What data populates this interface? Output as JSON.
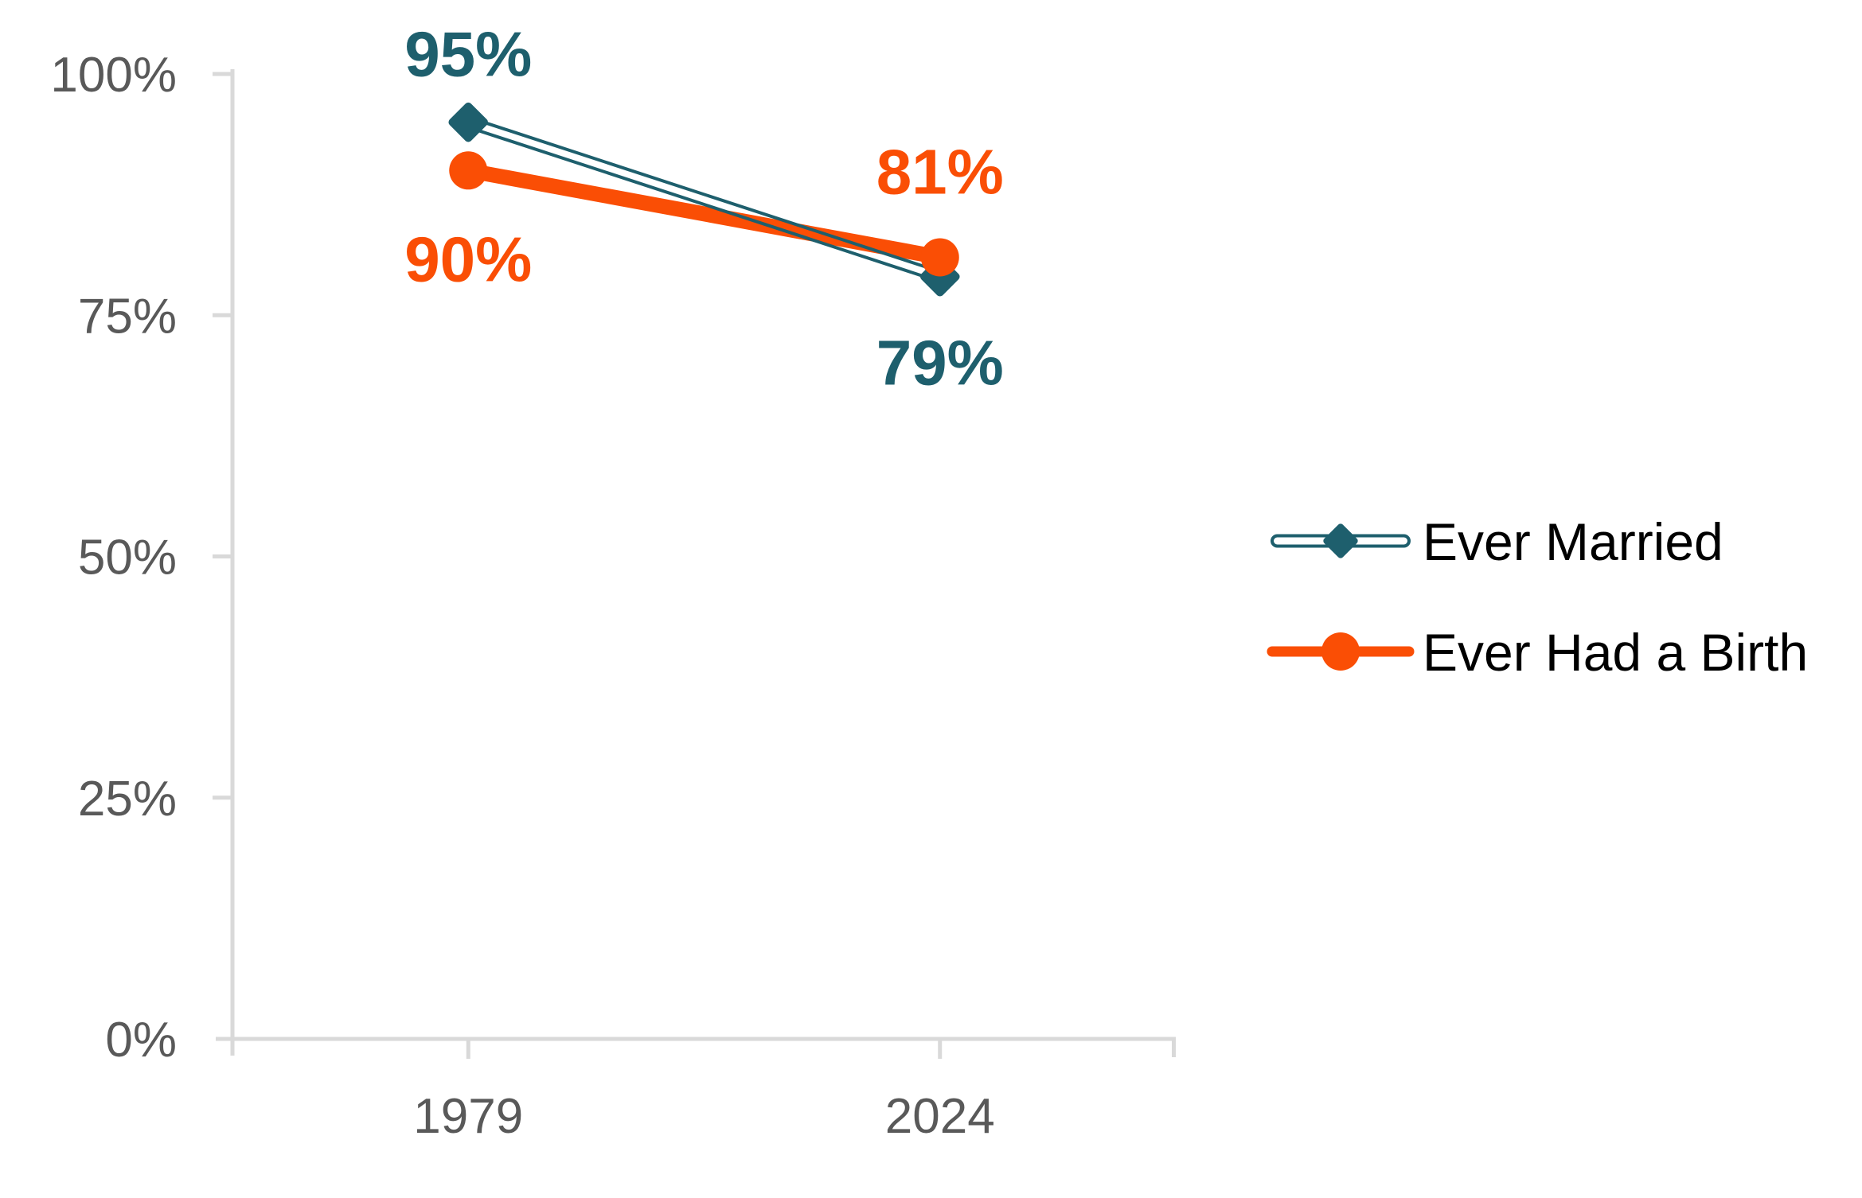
{
  "chart_data": {
    "type": "line",
    "title": "",
    "x_categories": [
      "1979",
      "2024"
    ],
    "series": [
      {
        "name": "Ever Married",
        "values": [
          95,
          79
        ],
        "point_labels": [
          "95%",
          "79%"
        ],
        "color": "#1E5F6D",
        "marker": "diamond",
        "line_style": "double-hollow"
      },
      {
        "name": "Ever Had a Birth",
        "values": [
          90,
          81
        ],
        "point_labels": [
          "90%",
          "81%"
        ],
        "color": "#FA4E05",
        "marker": "circle",
        "line_style": "solid"
      }
    ],
    "y_axis": {
      "range": [
        0,
        100
      ],
      "ticks": [
        {
          "value": 100,
          "label": "100%"
        },
        {
          "value": 75,
          "label": "75%"
        },
        {
          "value": 50,
          "label": "50%"
        },
        {
          "value": 25,
          "label": "25%"
        },
        {
          "value": 0,
          "label": "0%"
        }
      ]
    },
    "grid": false,
    "legend_position": "right",
    "axis_color": "#D9D9D9",
    "tick_label_color": "#595959",
    "legend_text_color": "#000000"
  }
}
